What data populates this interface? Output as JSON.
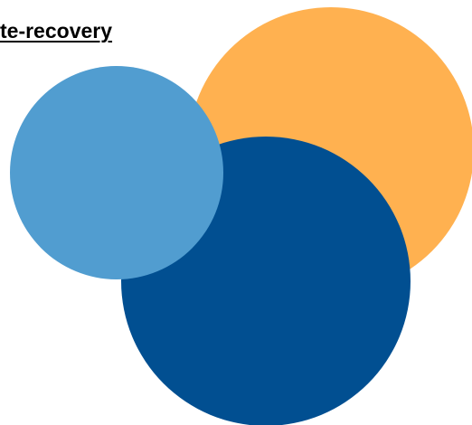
{
  "link": {
    "text": "te-recovery"
  },
  "colors": {
    "orange": "#FFB150",
    "light_blue": "#519DD0",
    "dark_blue": "#014F91"
  }
}
